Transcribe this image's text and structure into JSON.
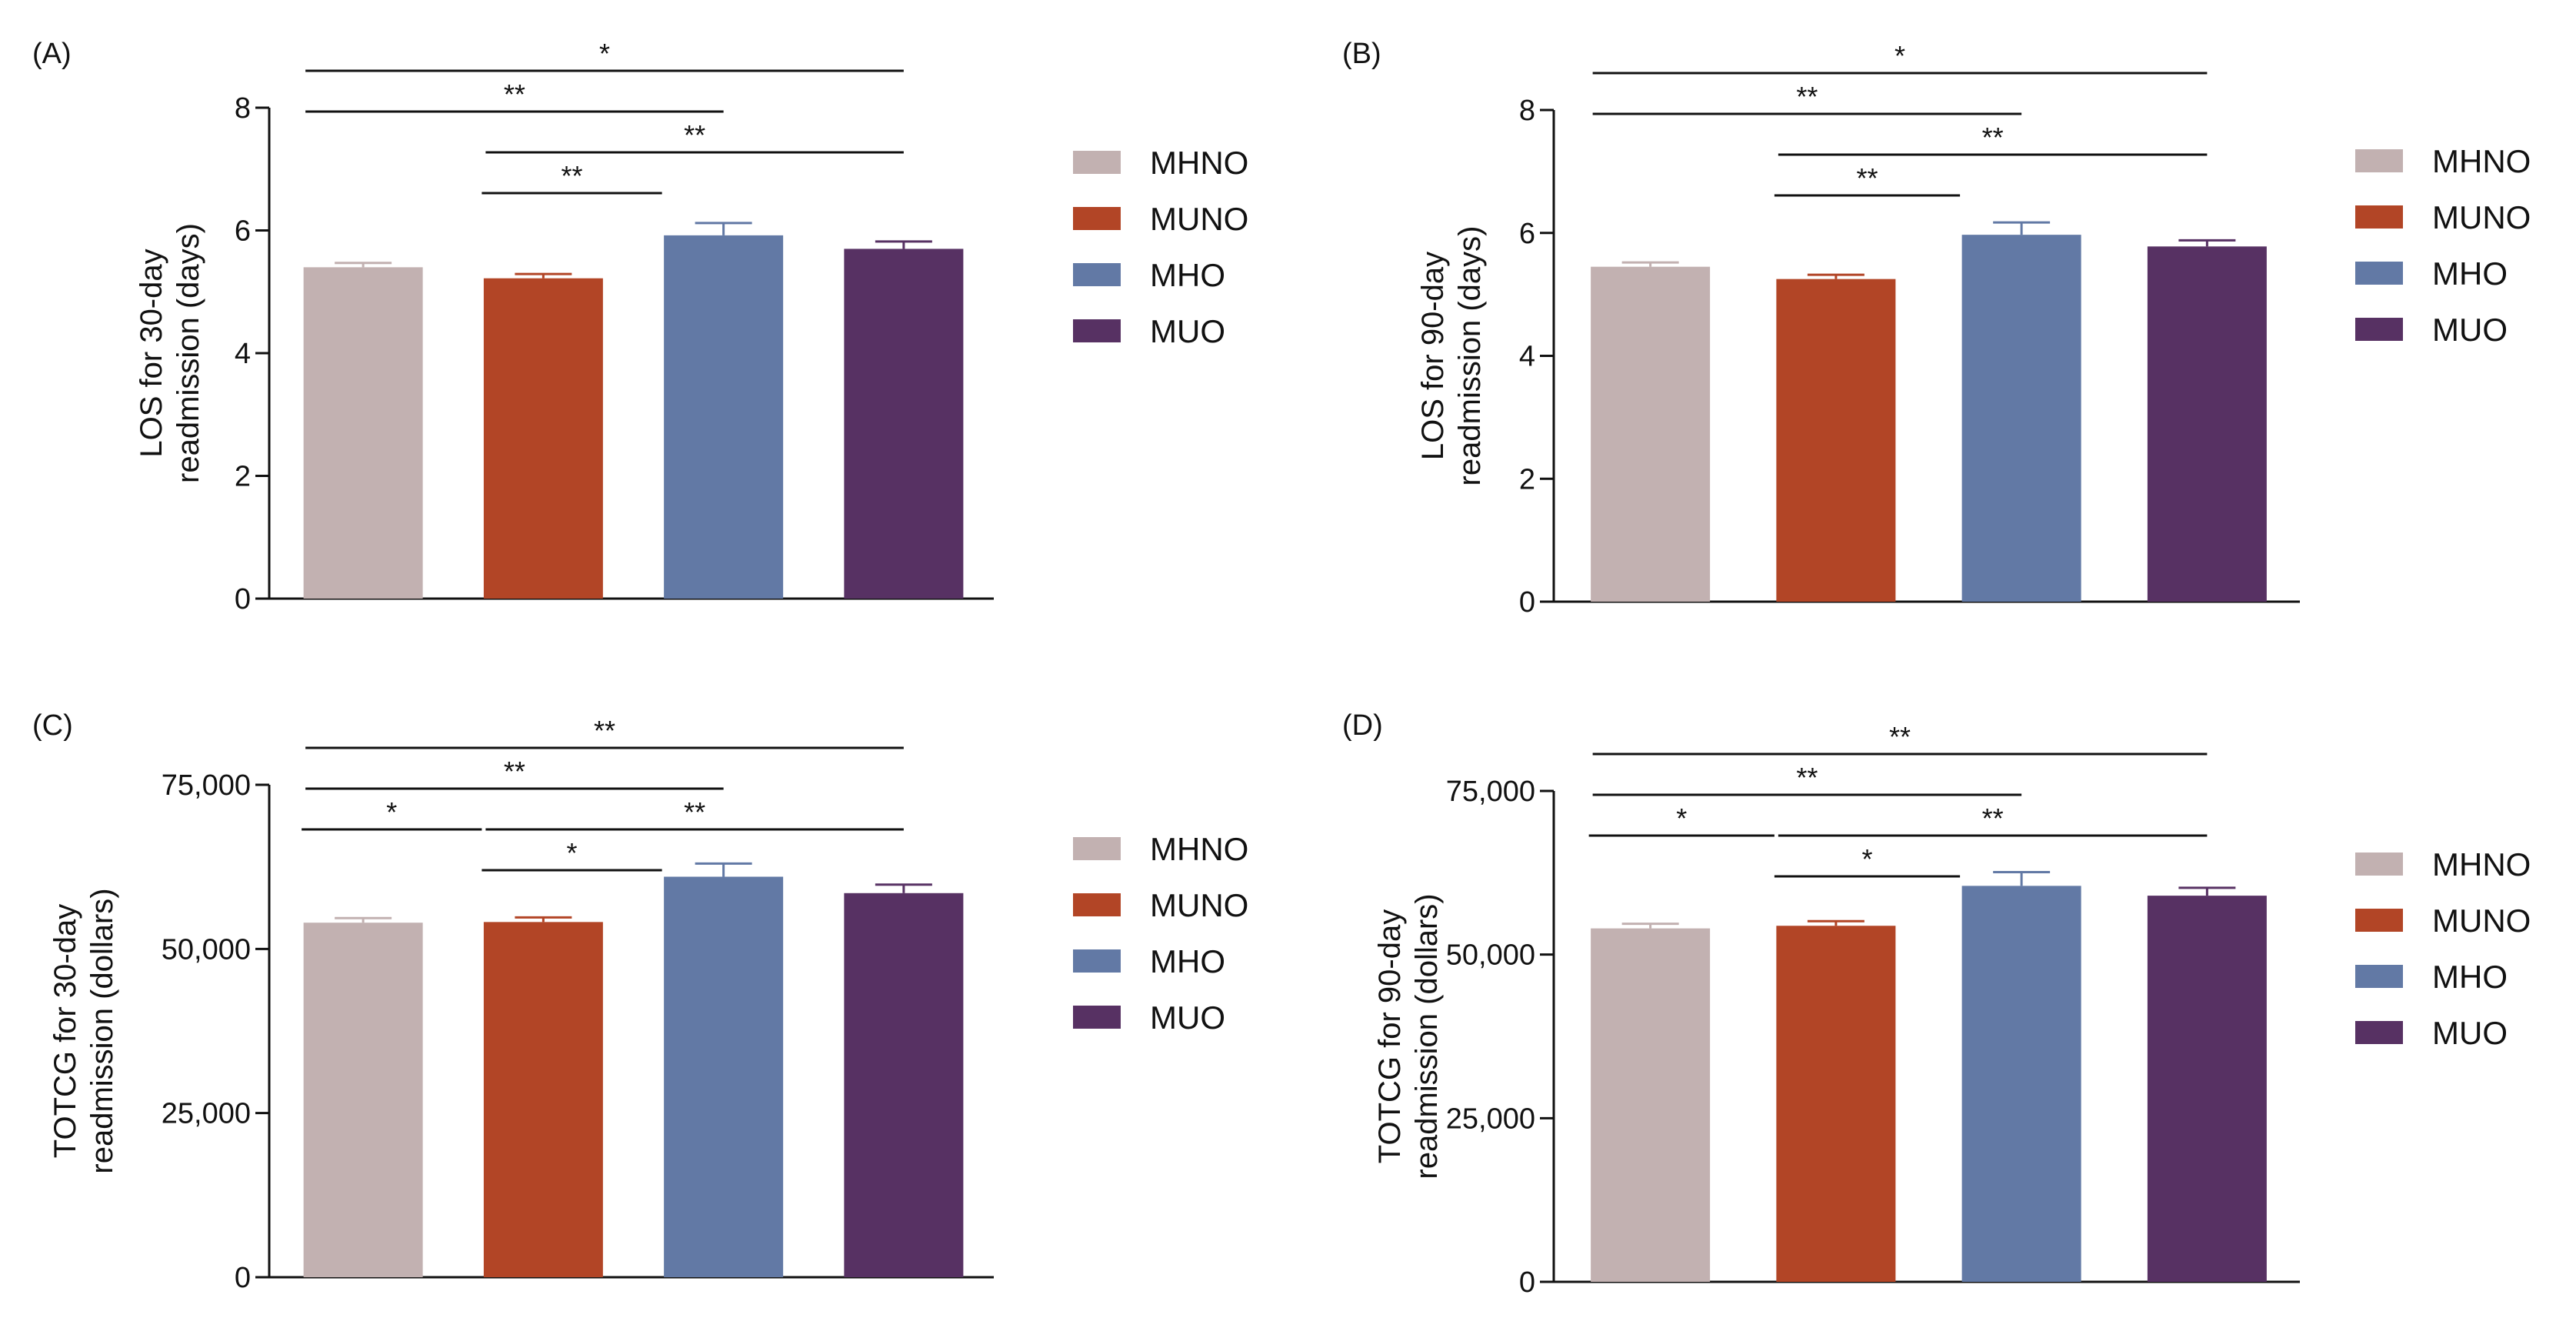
{
  "legend": [
    {
      "label": "MHNO",
      "color": "#c2b1b1"
    },
    {
      "label": "MUNO",
      "color": "#b24526"
    },
    {
      "label": "MHO",
      "color": "#6279a5"
    },
    {
      "label": "MUO",
      "color": "#573163"
    }
  ],
  "chart_data": [
    {
      "panel": "(A)",
      "type": "bar",
      "categories": [
        "MHNO",
        "MUNO",
        "MHO",
        "MUO"
      ],
      "values": [
        5.4,
        5.22,
        5.92,
        5.7
      ],
      "errors": [
        0.07,
        0.07,
        0.2,
        0.12
      ],
      "ylabel": [
        "LOS for 30-day",
        "readmission (days)"
      ],
      "ylim": [
        0,
        8
      ],
      "yticks": [
        0,
        2,
        4,
        6,
        8
      ],
      "ytick_labels": [
        "0",
        "2",
        "4",
        "6",
        "8"
      ],
      "significance": [
        {
          "from": 0,
          "to": 3,
          "label": "*"
        },
        {
          "from": 0,
          "to": 2,
          "label": "**"
        },
        {
          "from": 1,
          "to": 3,
          "label": "**"
        },
        {
          "from": 1,
          "to": 2,
          "label": "**"
        }
      ]
    },
    {
      "panel": "(B)",
      "type": "bar",
      "categories": [
        "MHNO",
        "MUNO",
        "MHO",
        "MUO"
      ],
      "values": [
        5.45,
        5.25,
        5.97,
        5.78
      ],
      "errors": [
        0.07,
        0.07,
        0.2,
        0.1
      ],
      "ylabel": [
        "LOS for 90-day",
        "readmission (days)"
      ],
      "ylim": [
        0,
        8
      ],
      "yticks": [
        0,
        2,
        4,
        6,
        8
      ],
      "ytick_labels": [
        "0",
        "2",
        "4",
        "6",
        "8"
      ],
      "significance": [
        {
          "from": 0,
          "to": 3,
          "label": "*"
        },
        {
          "from": 0,
          "to": 2,
          "label": "**"
        },
        {
          "from": 1,
          "to": 3,
          "label": "**"
        },
        {
          "from": 1,
          "to": 2,
          "label": "**"
        }
      ]
    },
    {
      "panel": "(C)",
      "type": "bar",
      "categories": [
        "MHNO",
        "MUNO",
        "MHO",
        "MUO"
      ],
      "values": [
        54000,
        54100,
        61000,
        58500
      ],
      "errors": [
        700,
        700,
        2000,
        1300
      ],
      "ylabel": [
        "TOTCG for 30-day",
        "readmission (dollars)"
      ],
      "ylim": [
        0,
        75000
      ],
      "yticks": [
        0,
        25000,
        50000,
        75000
      ],
      "ytick_labels": [
        "0",
        "25,000",
        "50,000",
        "75,000"
      ],
      "significance": [
        {
          "from": 0,
          "to": 3,
          "label": "**"
        },
        {
          "from": 0,
          "to": 2,
          "label": "**"
        },
        {
          "from": 1,
          "to": 3,
          "label": "**"
        },
        {
          "from": 0,
          "to": 1,
          "label": "*"
        },
        {
          "from": 1,
          "to": 2,
          "label": "*"
        }
      ]
    },
    {
      "panel": "(D)",
      "type": "bar",
      "categories": [
        "MHNO",
        "MUNO",
        "MHO",
        "MUO"
      ],
      "values": [
        54000,
        54400,
        60500,
        59000
      ],
      "errors": [
        700,
        700,
        2100,
        1200
      ],
      "ylabel": [
        "TOTCG for 90-day",
        "readmission (dollars)"
      ],
      "ylim": [
        0,
        75000
      ],
      "yticks": [
        0,
        25000,
        50000,
        75000
      ],
      "ytick_labels": [
        "0",
        "25,000",
        "50,000",
        "75,000"
      ],
      "significance": [
        {
          "from": 0,
          "to": 3,
          "label": "**"
        },
        {
          "from": 0,
          "to": 2,
          "label": "**"
        },
        {
          "from": 1,
          "to": 3,
          "label": "**"
        },
        {
          "from": 0,
          "to": 1,
          "label": "*"
        },
        {
          "from": 1,
          "to": 2,
          "label": "*"
        }
      ]
    }
  ]
}
